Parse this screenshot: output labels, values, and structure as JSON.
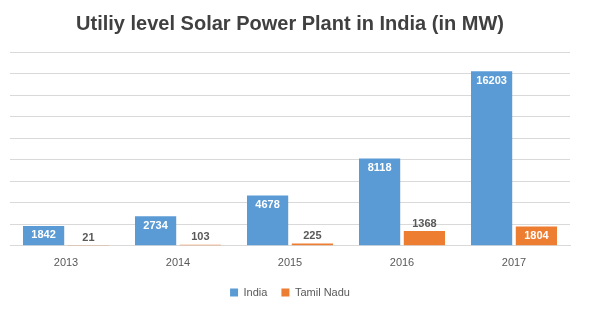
{
  "chart_data": {
    "type": "bar",
    "title": "Utiliy level Solar Power Plant in India (in MW)",
    "categories": [
      "2013",
      "2014",
      "2015",
      "2016",
      "2017"
    ],
    "series": [
      {
        "name": "India",
        "color": "#5b9bd5",
        "values": [
          1842,
          2734,
          4678,
          8118,
          16203
        ]
      },
      {
        "name": "Tamil Nadu",
        "color": "#ed7d31",
        "values": [
          21,
          103,
          225,
          1368,
          1804
        ]
      }
    ],
    "ylim": [
      0,
      18000
    ],
    "yticks": [
      0,
      2000,
      4000,
      6000,
      8000,
      10000,
      12000,
      14000,
      16000,
      18000
    ],
    "grid": true,
    "legend": "bottom",
    "data_labels": true,
    "tick_labels": "x"
  }
}
